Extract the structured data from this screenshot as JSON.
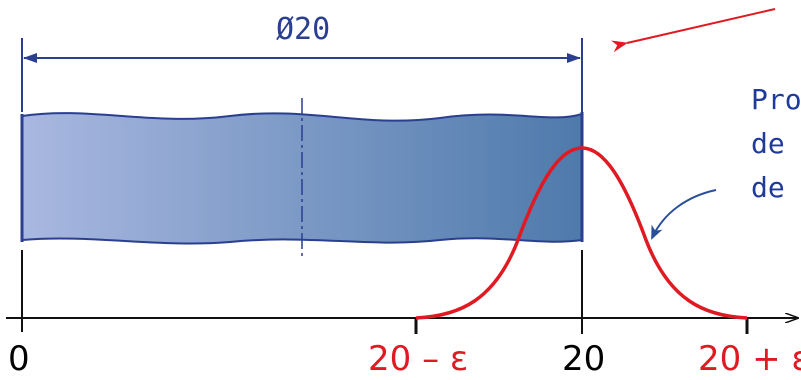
{
  "dimension": {
    "label": "Ø20"
  },
  "axis": {
    "ticks": [
      {
        "label": "0",
        "color": "#000000"
      },
      {
        "label": "20 – ε",
        "color": "#e01a22"
      },
      {
        "label": "20",
        "color": "#000000"
      },
      {
        "label": "20 + ε",
        "color": "#e01a22"
      }
    ]
  },
  "note": {
    "lines": [
      "Pro",
      "de",
      "de"
    ]
  },
  "colors": {
    "shaft_light": "#a9b8e0",
    "shaft_dark": "#4e7aab",
    "shaft_edge": "#2a3f8f",
    "curve": "#e01a22",
    "arrow_blue": "#2a4f9a",
    "axis": "#111111"
  }
}
